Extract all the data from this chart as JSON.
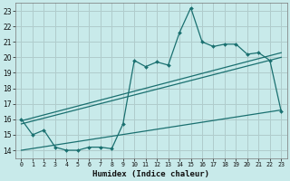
{
  "title": "",
  "xlabel": "Humidex (Indice chaleur)",
  "bg_color": "#c8eaea",
  "line_color": "#1a7070",
  "grid_color": "#b0cccc",
  "xlim": [
    -0.5,
    23.5
  ],
  "ylim": [
    13.5,
    23.5
  ],
  "yticks": [
    14,
    15,
    16,
    17,
    18,
    19,
    20,
    21,
    22,
    23
  ],
  "xticks": [
    0,
    1,
    2,
    3,
    4,
    5,
    6,
    7,
    8,
    9,
    10,
    11,
    12,
    13,
    14,
    15,
    16,
    17,
    18,
    19,
    20,
    21,
    22,
    23
  ],
  "main_x": [
    0,
    1,
    2,
    3,
    4,
    5,
    6,
    7,
    8,
    9,
    10,
    11,
    12,
    13,
    14,
    15,
    16,
    17,
    18,
    19,
    20,
    21,
    22,
    23
  ],
  "main_y": [
    16.0,
    15.0,
    15.3,
    14.2,
    14.0,
    14.0,
    14.2,
    14.2,
    14.1,
    15.7,
    19.8,
    19.4,
    19.7,
    19.5,
    21.6,
    23.2,
    21.0,
    20.7,
    20.85,
    20.85,
    20.2,
    20.3,
    19.8,
    16.5
  ],
  "line1_x": [
    0,
    23
  ],
  "line1_y": [
    15.9,
    20.3
  ],
  "line2_x": [
    0,
    23
  ],
  "line2_y": [
    15.7,
    20.0
  ],
  "line3_x": [
    0,
    23
  ],
  "line3_y": [
    14.0,
    16.6
  ]
}
